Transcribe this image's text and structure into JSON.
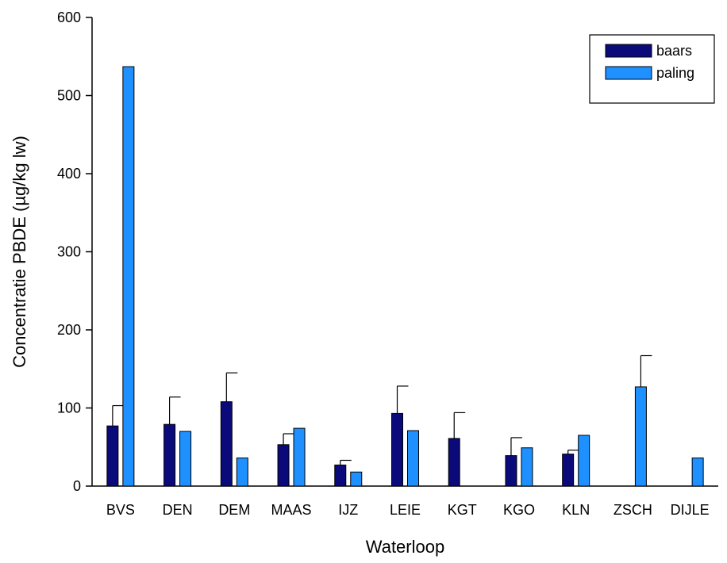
{
  "chart_data": {
    "type": "bar",
    "xlabel": "Waterloop",
    "ylabel": "Concentratie PBDE (µg/kg lw)",
    "ylim": [
      0,
      600
    ],
    "yticks": [
      0,
      100,
      200,
      300,
      400,
      500,
      600
    ],
    "categories": [
      "BVS",
      "DEN",
      "DEM",
      "MAAS",
      "IJZ",
      "LEIE",
      "KGT",
      "KGO",
      "KLN",
      "ZSCH",
      "DIJLE"
    ],
    "series": [
      {
        "name": "baars",
        "color": "#0a0a7a",
        "values": [
          77,
          79,
          108,
          53,
          27,
          93,
          61,
          39,
          41,
          null,
          null
        ],
        "error": [
          26,
          35,
          37,
          14,
          6,
          35,
          33,
          23,
          5,
          null,
          null
        ]
      },
      {
        "name": "paling",
        "color": "#1e90ff",
        "values": [
          537,
          70,
          36,
          74,
          18,
          71,
          null,
          49,
          65,
          127,
          36
        ],
        "error": [
          null,
          null,
          null,
          null,
          null,
          null,
          null,
          null,
          null,
          40,
          null
        ]
      }
    ],
    "grid": false,
    "legend_position": "top-right"
  }
}
